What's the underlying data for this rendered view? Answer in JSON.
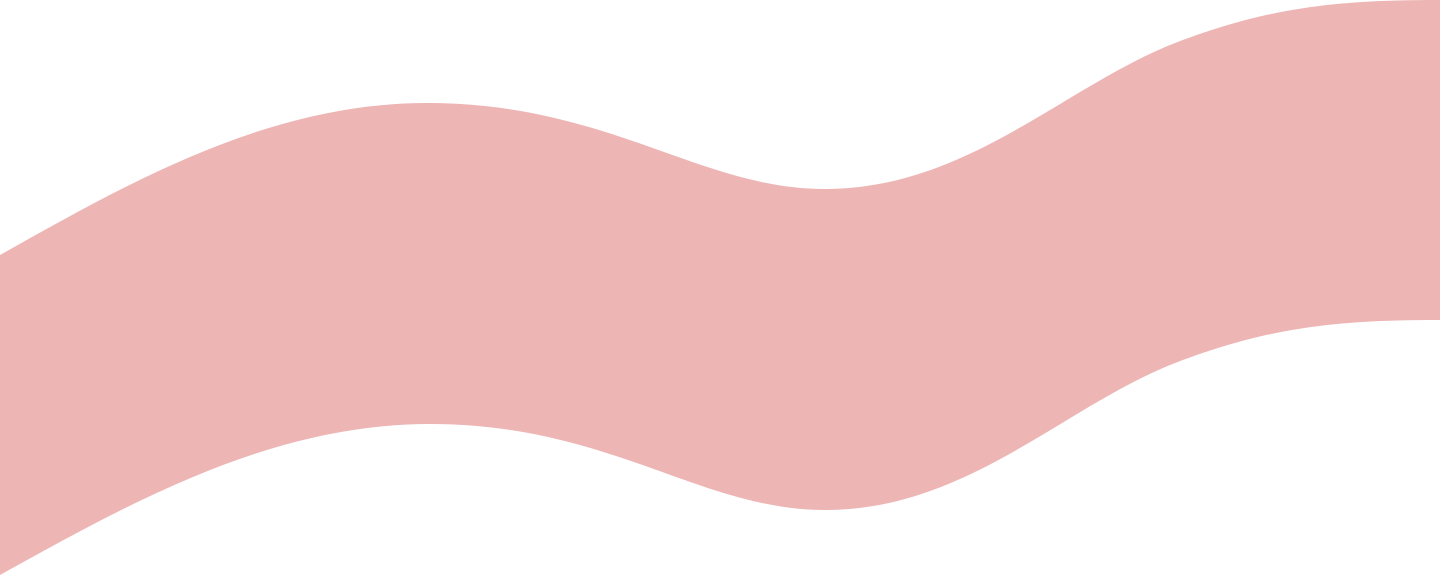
{
  "decoration": {
    "shape": "wave-band",
    "fill_color": "#EEB5B5",
    "background_color": "#FFFFFF"
  }
}
